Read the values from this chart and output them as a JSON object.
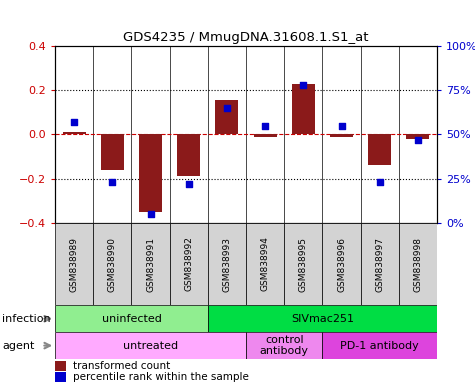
{
  "title": "GDS4235 / MmugDNA.31608.1.S1_at",
  "samples": [
    "GSM838989",
    "GSM838990",
    "GSM838991",
    "GSM838992",
    "GSM838993",
    "GSM838994",
    "GSM838995",
    "GSM838996",
    "GSM838997",
    "GSM838998"
  ],
  "bar_values": [
    0.01,
    -0.16,
    -0.35,
    -0.19,
    0.155,
    -0.01,
    0.23,
    -0.01,
    -0.14,
    -0.02
  ],
  "dot_values": [
    57,
    23,
    5,
    22,
    65,
    55,
    78,
    55,
    23,
    47
  ],
  "bar_color": "#8B1A1A",
  "dot_color": "#0000CD",
  "ylim_left": [
    -0.4,
    0.4
  ],
  "ylim_right": [
    0,
    100
  ],
  "yticks_left": [
    -0.4,
    -0.2,
    0.0,
    0.2,
    0.4
  ],
  "yticks_right": [
    0,
    25,
    50,
    75,
    100
  ],
  "ytick_right_labels": [
    "0%",
    "25%",
    "50%",
    "75%",
    "100%"
  ],
  "infection_groups": [
    {
      "label": "uninfected",
      "start": 0,
      "end": 4,
      "color": "#90EE90"
    },
    {
      "label": "SIVmac251",
      "start": 4,
      "end": 10,
      "color": "#00DD44"
    }
  ],
  "agent_groups": [
    {
      "label": "untreated",
      "start": 0,
      "end": 5,
      "color": "#FFAAFF"
    },
    {
      "label": "control\nantibody",
      "start": 5,
      "end": 7,
      "color": "#EE88EE"
    },
    {
      "label": "PD-1 antibody",
      "start": 7,
      "end": 10,
      "color": "#DD44DD"
    }
  ],
  "legend_items": [
    {
      "label": "transformed count",
      "color": "#8B1A1A"
    },
    {
      "label": "percentile rank within the sample",
      "color": "#0000CD"
    }
  ],
  "infection_label": "infection",
  "agent_label": "agent",
  "hline_color": "#CC0000",
  "sample_bg": "#D3D3D3",
  "arrow_color": "#888888"
}
